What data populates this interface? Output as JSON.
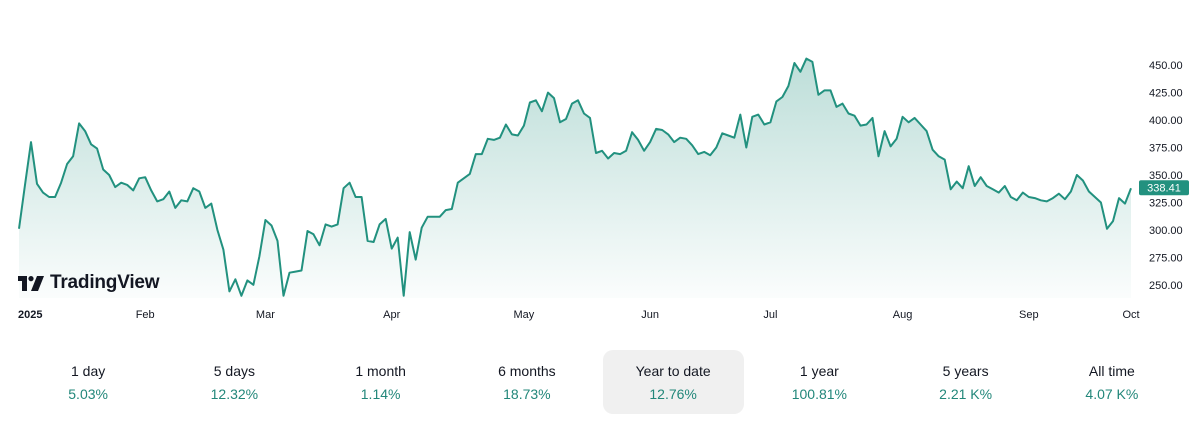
{
  "brand": {
    "name": "TradingView"
  },
  "chart_data": {
    "type": "area",
    "year_label": "2025",
    "x_tick_labels": [
      "2025",
      "Feb",
      "Mar",
      "Apr",
      "May",
      "Jun",
      "Jul",
      "Aug",
      "Sep",
      "Oct"
    ],
    "y_tick_labels": [
      "450.00",
      "425.00",
      "400.00",
      "375.00",
      "350.00",
      "325.00",
      "300.00",
      "275.00",
      "250.00"
    ],
    "y_ticks": [
      450,
      425,
      400,
      375,
      350,
      325,
      300,
      275,
      250
    ],
    "ylim": [
      238,
      462
    ],
    "last_price": 338.41,
    "last_price_label": "338.41",
    "colors": {
      "line": "#22917f",
      "badge": "#22917f"
    },
    "series": [
      {
        "name": "Price",
        "values": [
          301,
          341,
          380,
          342,
          334,
          330,
          330,
          343,
          360,
          367,
          397,
          390,
          378,
          374,
          355,
          350,
          339,
          343,
          341,
          336,
          347,
          348,
          336,
          326,
          328,
          335,
          320,
          327,
          326,
          338,
          335,
          320,
          324,
          300,
          282,
          244,
          255,
          240,
          254,
          250,
          276,
          309,
          304,
          290,
          240,
          261,
          262,
          263,
          299,
          296,
          286,
          305,
          303,
          305,
          338,
          343,
          330,
          330,
          290,
          289,
          305,
          310,
          283,
          293,
          240,
          298,
          273,
          302,
          312,
          312,
          312,
          318,
          319,
          343,
          347,
          351,
          369,
          369,
          383,
          382,
          384,
          396,
          387,
          386,
          395,
          416,
          418,
          408,
          425,
          420,
          398,
          401,
          415,
          418,
          406,
          402,
          370,
          372,
          365,
          370,
          369,
          372,
          389,
          382,
          372,
          380,
          392,
          391,
          387,
          380,
          384,
          383,
          377,
          369,
          371,
          368,
          375,
          388,
          386,
          384,
          405,
          375,
          403,
          405,
          396,
          398,
          417,
          421,
          431,
          452,
          444,
          456,
          453,
          423,
          427,
          427,
          412,
          415,
          406,
          404,
          395,
          396,
          402,
          367,
          390,
          376,
          383,
          403,
          398,
          402,
          396,
          390,
          373,
          367,
          364,
          337,
          344,
          338,
          358,
          340,
          348,
          340,
          337,
          334,
          340,
          330,
          327,
          334,
          330,
          329,
          327,
          326,
          329,
          333,
          328,
          335,
          350,
          345,
          335,
          330,
          325,
          301,
          308,
          329,
          324,
          338
        ]
      }
    ]
  },
  "periods": [
    {
      "label": "1 day",
      "change": "5.03%"
    },
    {
      "label": "5 days",
      "change": "12.32%"
    },
    {
      "label": "1 month",
      "change": "1.14%"
    },
    {
      "label": "6 months",
      "change": "18.73%"
    },
    {
      "label": "Year to date",
      "change": "12.76%",
      "active": true
    },
    {
      "label": "1 year",
      "change": "100.81%"
    },
    {
      "label": "5 years",
      "change": "2.21 K%"
    },
    {
      "label": "All time",
      "change": "4.07 K%"
    }
  ]
}
